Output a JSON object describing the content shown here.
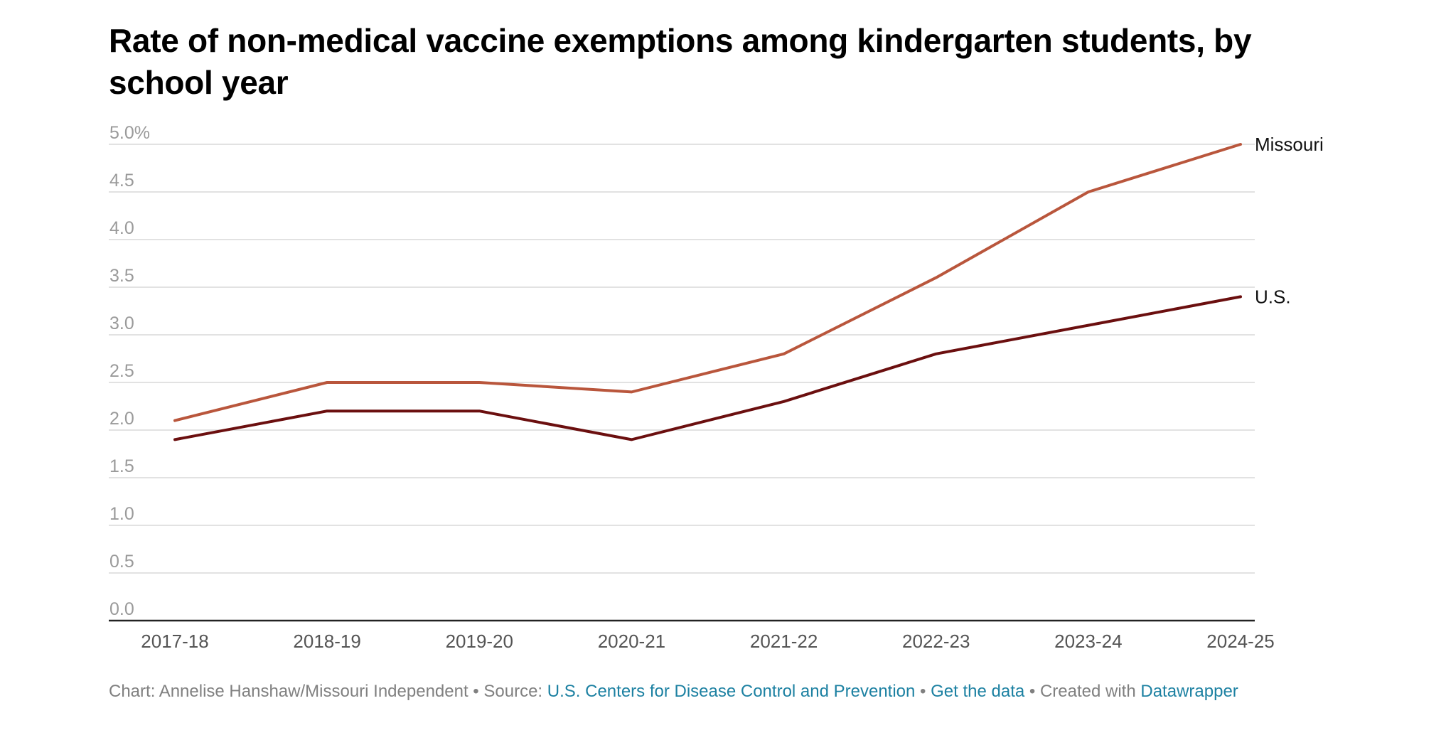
{
  "chart_data": {
    "type": "line",
    "title": "Rate of non-medical vaccine exemptions among kindergarten students, by school year",
    "xlabel": "",
    "ylabel": "",
    "categories": [
      "2017-18",
      "2018-19",
      "2019-20",
      "2020-21",
      "2021-22",
      "2022-23",
      "2023-24",
      "2024-25"
    ],
    "ylim": [
      0,
      5
    ],
    "yticks": [
      "0.0",
      "0.5",
      "1.0",
      "1.5",
      "2.0",
      "2.5",
      "3.0",
      "3.5",
      "4.0",
      "4.5",
      "5.0%"
    ],
    "grid": true,
    "series": [
      {
        "name": "Missouri",
        "color": "#b9563c",
        "values": [
          2.1,
          2.5,
          2.5,
          2.4,
          2.8,
          3.6,
          4.5,
          5.0
        ]
      },
      {
        "name": "U.S.",
        "color": "#6b0f0f",
        "values": [
          1.9,
          2.2,
          2.2,
          1.9,
          2.3,
          2.8,
          3.1,
          3.4
        ]
      }
    ]
  },
  "footer": {
    "chart_credit": "Chart: Annelise Hanshaw/Missouri Independent",
    "sep1": " • ",
    "source_label": "Source: ",
    "source_link": "U.S. Centers for Disease Control and Prevention",
    "sep2": " • ",
    "get_data": "Get the data",
    "sep3": " • ",
    "created_with": "Created with ",
    "datawrapper": "Datawrapper"
  },
  "colors": {
    "grid": "#d9d9d9",
    "axis": "#222222",
    "tick_label": "#9a9a9a",
    "x_label": "#555555",
    "link": "#1d81a2"
  }
}
